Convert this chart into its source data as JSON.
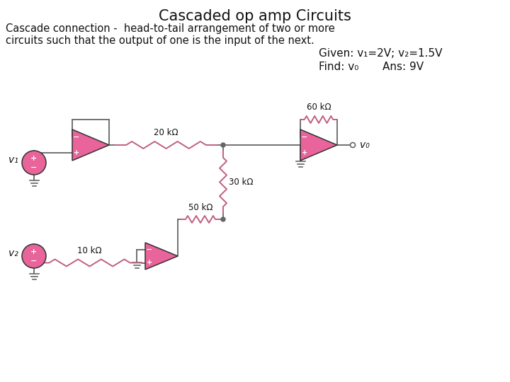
{
  "title": "Cascaded op amp Circuits",
  "subtitle1": "Cascade connection -  head-to-tail arrangement of two or more",
  "subtitle2": "circuits such that the output of one is the input of the next.",
  "given_text": "Given: v₁=2V; v₂=1.5V",
  "find_text": "Find: v₀",
  "ans_text": "Ans: 9V",
  "pink_fill": "#E8649A",
  "wire_color": "#666666",
  "text_color": "#111111",
  "bg": "#FFFFFF",
  "res_color": "#C06080"
}
